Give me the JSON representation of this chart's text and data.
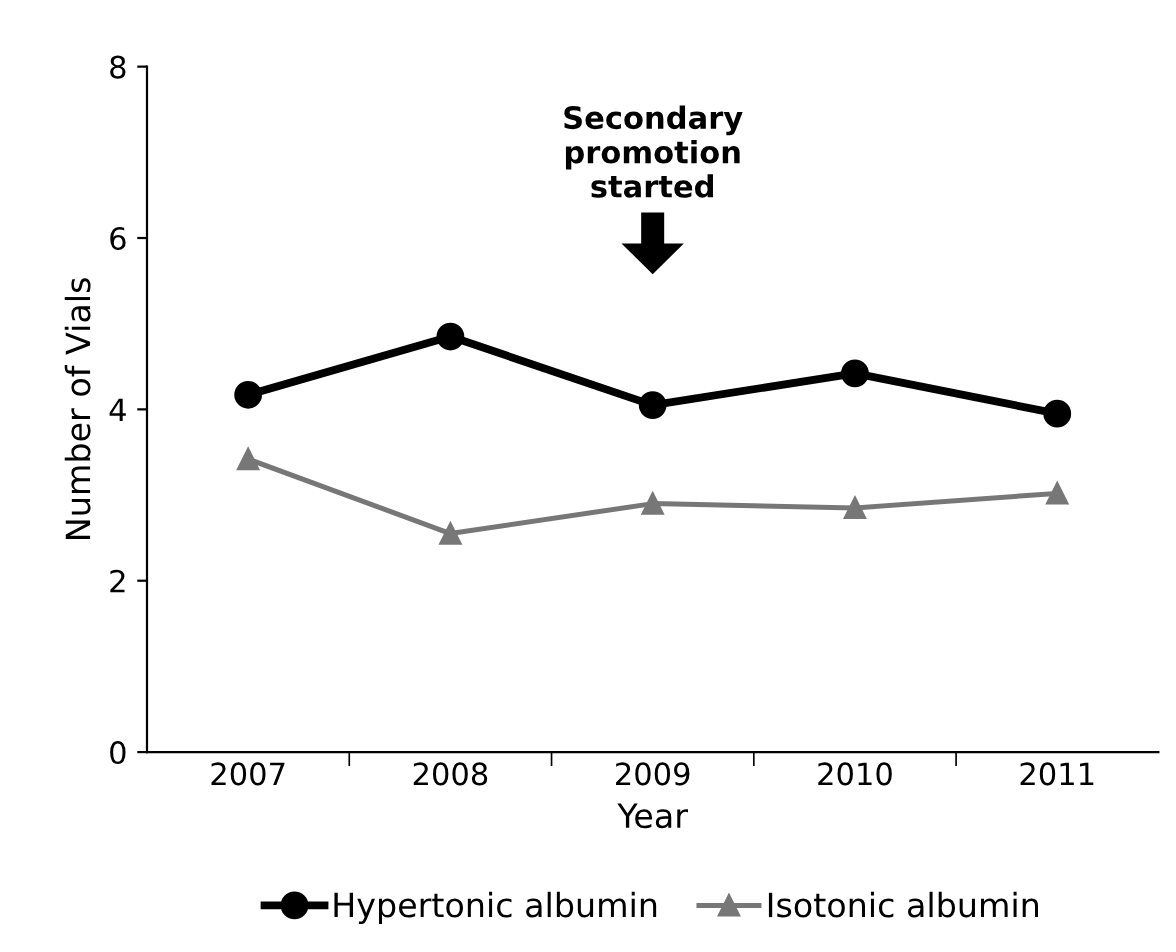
{
  "chart_data": {
    "type": "line",
    "xlabel": "Year",
    "ylabel": "Number of Vials",
    "categories": [
      "2007",
      "2008",
      "2009",
      "2010",
      "2011"
    ],
    "series": [
      {
        "name": "Hypertonic albumin",
        "color": "#000000",
        "values": [
          4.17,
          4.85,
          4.05,
          4.42,
          3.95
        ],
        "marker": "circle"
      },
      {
        "name": "Isotonic albumin",
        "color": "#777777",
        "values": [
          3.42,
          2.55,
          2.9,
          2.85,
          3.02
        ],
        "marker": "triangle"
      }
    ],
    "ylim": [
      0,
      8
    ],
    "yticks": [
      0,
      2,
      4,
      6,
      8
    ],
    "grid": false,
    "legend": "bottom",
    "annotations": [
      "Secondary\npromotion\nstarted"
    ]
  }
}
